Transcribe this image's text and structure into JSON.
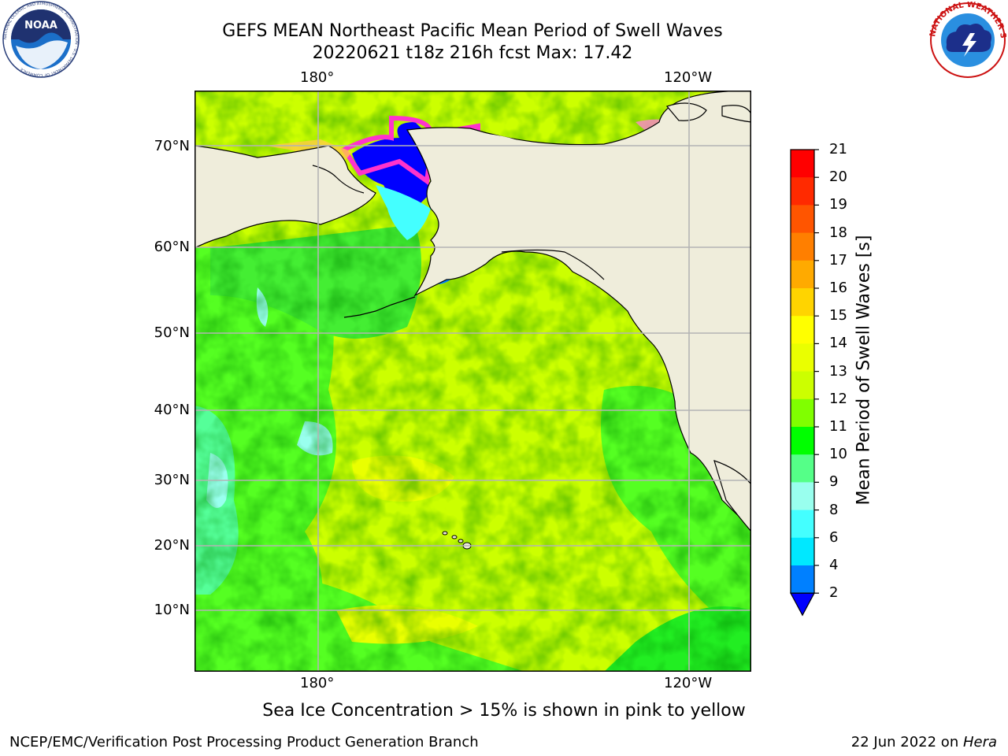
{
  "header": {
    "title_line1": "GEFS MEAN Northeast Pacific Mean Period of Swell Waves",
    "title_line2": "20220621 t18z 216h fcst   Max: 17.42"
  },
  "logos": {
    "left": {
      "icon": "noaa-logo-icon",
      "text": "NOAA",
      "ring_text": "NATIONAL OCEANIC AND ATMOSPHERIC ADMINISTRATION · U.S. DEPARTMENT OF COMMERCE"
    },
    "right": {
      "icon": "nws-logo-icon",
      "ring_text": "NATIONAL WEATHER SERVICE"
    }
  },
  "map": {
    "lon_labels_top": [
      "180°",
      "120°W"
    ],
    "lon_labels_bottom": [
      "180°",
      "120°W"
    ],
    "lat_labels": [
      "70°N",
      "60°N",
      "50°N",
      "40°N",
      "30°N",
      "20°N",
      "10°N"
    ],
    "colors": {
      "land": "#efeddb",
      "coast": "#000000",
      "grid": "#b4b4b4",
      "ice_pink": "#ff88cc",
      "ice_magenta": "#ff33cc",
      "deep_blue": "#0000ff"
    }
  },
  "colorbar": {
    "label": "Mean Period of Swell Waves [s]",
    "ticks": [
      "21",
      "20",
      "19",
      "18",
      "17",
      "16",
      "15",
      "14",
      "13",
      "12",
      "11",
      "10",
      "9",
      "8",
      "6",
      "4",
      "2"
    ],
    "levels_top_to_bottom": [
      "#ff0000",
      "#ff2a00",
      "#ff5500",
      "#ff7f00",
      "#ffaa00",
      "#ffd400",
      "#ffff00",
      "#eaff00",
      "#ccff00",
      "#80ff00",
      "#00ff00",
      "#55ff88",
      "#99ffee",
      "#44ffff",
      "#00e8ff",
      "#0080ff"
    ],
    "extend_color": "#0000ff"
  },
  "caption": "Sea Ice Concentration > 15% is shown in pink to yellow",
  "footer": {
    "left": "NCEP/EMC/Verification Post Processing Product Generation Branch",
    "right_prefix": "22 Jun 2022 on ",
    "right_host": "Hera"
  }
}
